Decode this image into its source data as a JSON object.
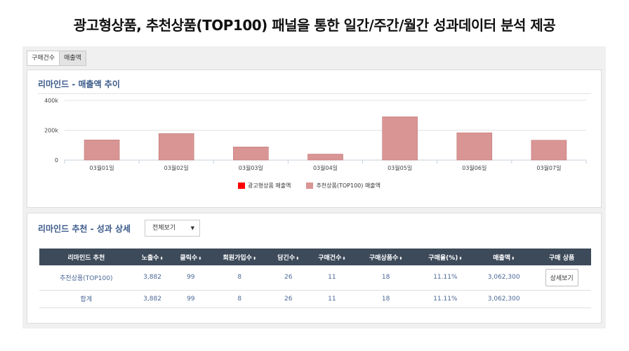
{
  "headline": "광고형상품, 추천상품(TOP100) 패널을 통한 일간/주간/월간 성과데이터 분석 제공",
  "tabs": [
    {
      "label": "구매건수",
      "active": false
    },
    {
      "label": "매출액",
      "active": true
    }
  ],
  "chart_panel": {
    "title": "리마인드 - 매출액 추이"
  },
  "chart_data": {
    "type": "bar",
    "categories": [
      "03월01일",
      "03월02일",
      "03월03일",
      "03월04일",
      "03월05일",
      "03월06일",
      "03월07일"
    ],
    "series": [
      {
        "name": "광고형상품 매출액",
        "color": "#ff0000",
        "values": [
          0,
          0,
          0,
          0,
          0,
          0,
          0
        ]
      },
      {
        "name": "추천상품(TOP100) 매출액",
        "color": "#d99594",
        "values": [
          135000,
          178000,
          88000,
          40000,
          290000,
          183000,
          133000
        ]
      }
    ],
    "y_ticks": [
      "0",
      "200k",
      "400k"
    ],
    "ylim": [
      0,
      400000
    ],
    "grid": true,
    "legend": "bottom"
  },
  "table_panel": {
    "title": "리마인드 추천 - 성과 상세",
    "filter_value": "전체보기",
    "filter_caret": "▼",
    "sort_glyph": "⬍",
    "headers": [
      "리마인드 추천",
      "노출수",
      "클릭수",
      "회원가입수",
      "담긴수",
      "구매건수",
      "구매상품수",
      "구매율(%)",
      "매출액",
      "구매 상품"
    ],
    "rows": [
      {
        "cells": [
          "추천상품(TOP100)",
          "3,882",
          "99",
          "8",
          "26",
          "11",
          "18",
          "11.11%",
          "3,062,300"
        ],
        "action": "상세보기"
      },
      {
        "cells": [
          "합계",
          "3,882",
          "99",
          "8",
          "26",
          "11",
          "18",
          "11.11%",
          "3,062,300"
        ],
        "action": ""
      }
    ]
  }
}
